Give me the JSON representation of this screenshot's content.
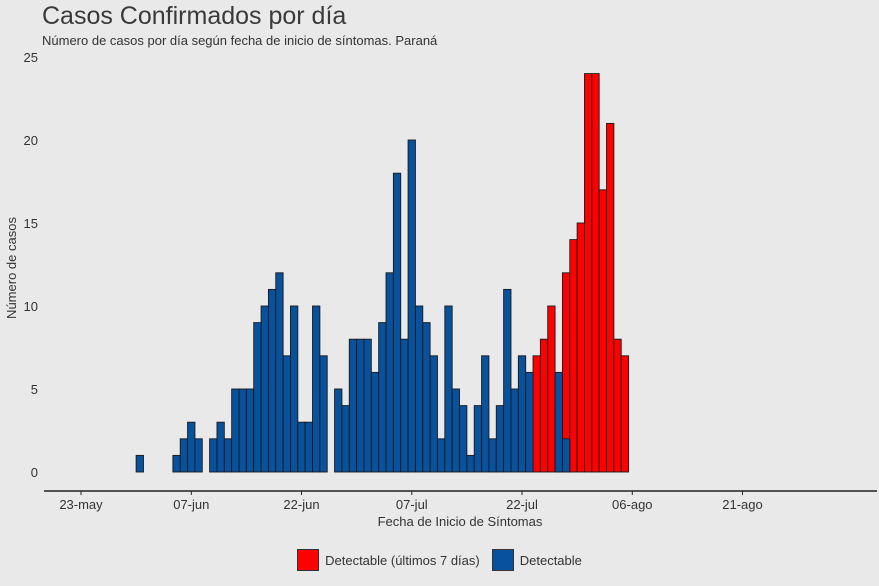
{
  "chart_data": {
    "type": "bar",
    "title": "Casos Confirmados por día",
    "subtitle": "Número de casos por día según fecha de inicio de síntomas. Paraná",
    "xlabel": "Fecha de Inicio de Síntomas",
    "ylabel": "Número de casos",
    "ylim": [
      0,
      25
    ],
    "yticks": [
      0,
      5,
      10,
      15,
      20,
      25
    ],
    "xticks": [
      "23-may",
      "07-jun",
      "22-jun",
      "07-jul",
      "22-jul",
      "06-ago",
      "21-ago"
    ],
    "grid": false,
    "legend_position": "bottom",
    "colors": {
      "red": "#ff0000",
      "blue": "#08519c"
    },
    "series": [
      {
        "name": "Detectable (últimos 7 días)",
        "color": "#ff0000",
        "x": [
          "2020-07-24",
          "2020-07-25",
          "2020-07-26",
          "2020-07-27",
          "2020-07-28",
          "2020-07-29",
          "2020-07-30",
          "2020-07-31",
          "2020-08-01",
          "2020-08-02",
          "2020-08-03",
          "2020-08-04",
          "2020-08-05",
          "2020-08-06"
        ],
        "values": [
          7,
          8,
          10,
          4,
          12,
          14,
          15,
          24,
          24,
          17,
          21,
          8,
          7,
          0
        ]
      },
      {
        "name": "Detectable",
        "color": "#08519c",
        "x": [
          "2020-05-31",
          "2020-06-01",
          "2020-06-02",
          "2020-06-03",
          "2020-06-04",
          "2020-06-05",
          "2020-06-06",
          "2020-06-07",
          "2020-06-08",
          "2020-06-09",
          "2020-06-10",
          "2020-06-11",
          "2020-06-12",
          "2020-06-13",
          "2020-06-14",
          "2020-06-15",
          "2020-06-16",
          "2020-06-17",
          "2020-06-18",
          "2020-06-19",
          "2020-06-20",
          "2020-06-21",
          "2020-06-22",
          "2020-06-23",
          "2020-06-24",
          "2020-06-25",
          "2020-06-26",
          "2020-06-27",
          "2020-06-28",
          "2020-06-29",
          "2020-06-30",
          "2020-07-01",
          "2020-07-02",
          "2020-07-03",
          "2020-07-04",
          "2020-07-05",
          "2020-07-06",
          "2020-07-07",
          "2020-07-08",
          "2020-07-09",
          "2020-07-10",
          "2020-07-11",
          "2020-07-12",
          "2020-07-13",
          "2020-07-14",
          "2020-07-15",
          "2020-07-16",
          "2020-07-17",
          "2020-07-18",
          "2020-07-19",
          "2020-07-20",
          "2020-07-21",
          "2020-07-22",
          "2020-07-23",
          "2020-07-24",
          "2020-07-25",
          "2020-07-26",
          "2020-07-27",
          "2020-07-28",
          "2020-07-29"
        ],
        "values": [
          1,
          0,
          0,
          0,
          0,
          1,
          2,
          3,
          2,
          0,
          2,
          3,
          2,
          5,
          5,
          5,
          9,
          10,
          11,
          12,
          7,
          10,
          3,
          3,
          10,
          7,
          0,
          5,
          4,
          8,
          8,
          8,
          6,
          9,
          12,
          18,
          8,
          20,
          10,
          9,
          7,
          2,
          10,
          5,
          4,
          1,
          4,
          7,
          2,
          4,
          11,
          5,
          7,
          6,
          0,
          0,
          0,
          6,
          2,
          0
        ]
      }
    ]
  }
}
